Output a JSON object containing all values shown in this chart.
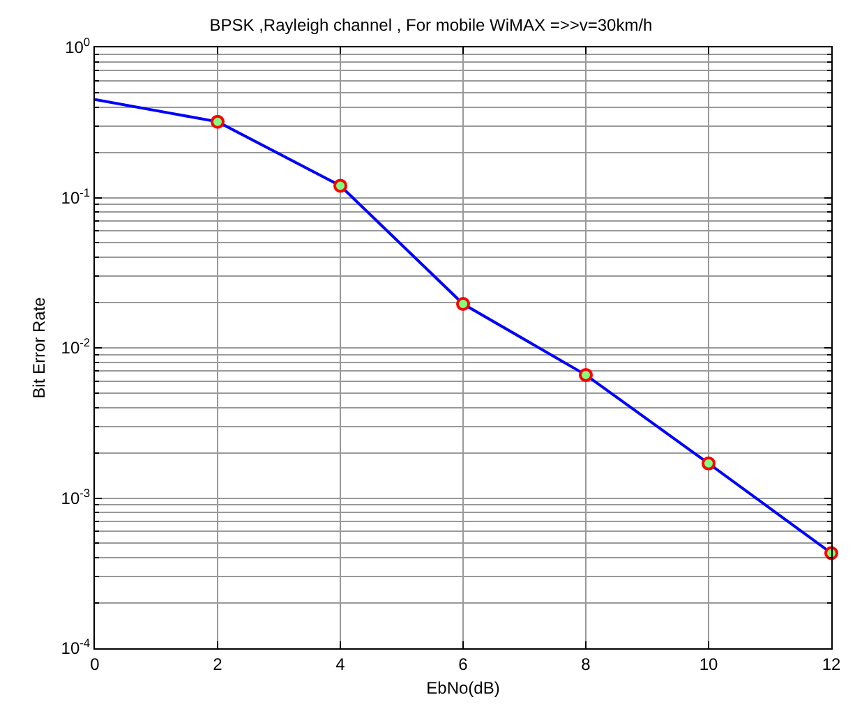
{
  "chart_data": {
    "type": "line",
    "title": "BPSK ,Rayleigh channel , For mobile WiMAX =>>v=30km/h",
    "xlabel": "EbNo(dB)",
    "ylabel": "Bit Error Rate",
    "log": "y",
    "grid": true,
    "xlim": [
      0,
      12
    ],
    "xticks": [
      0,
      2,
      4,
      6,
      8,
      10,
      12
    ],
    "ylim": [
      0.0001,
      1
    ],
    "yticks": [
      {
        "value": 0.0001,
        "label": "10$^{-4}$"
      },
      {
        "value": 0.001,
        "label": "10$^{-3}$"
      },
      {
        "value": 0.01,
        "label": "10$^{-2}$"
      },
      {
        "value": 0.1,
        "label": "10$^{-1}$"
      },
      {
        "value": 1,
        "label": "10$^{0}$"
      }
    ],
    "series": [
      {
        "color": "#0000ff",
        "x": [
          0,
          2,
          4,
          6,
          8,
          10,
          12
        ],
        "values": [
          0.45,
          0.32,
          0.12,
          0.0196,
          0.0066,
          0.0017,
          0.00043
        ],
        "marker": "none",
        "line_style": "solid"
      },
      {
        "type": "scatter",
        "color": "#ff0000",
        "x": [
          2,
          4,
          6,
          8,
          10,
          12
        ],
        "values": [
          0.32,
          0.12,
          0.0196,
          0.0066,
          0.0017,
          0.00043
        ],
        "marker": "circle"
      }
    ]
  }
}
